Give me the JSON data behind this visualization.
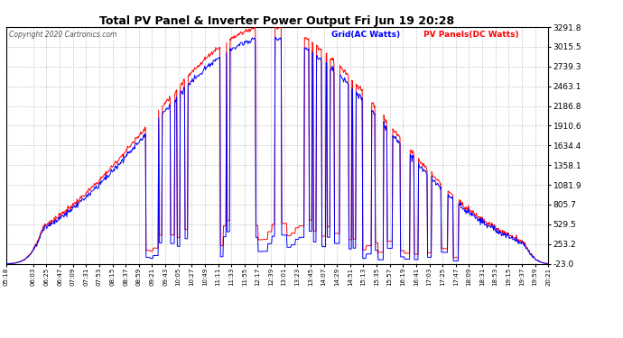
{
  "title": "Total PV Panel & Inverter Power Output Fri Jun 19 20:28",
  "copyright": "Copyright 2020 Cartronics.com",
  "legend_blue": "Grid(AC Watts)",
  "legend_red": "PV Panels(DC Watts)",
  "y_ticks": [
    3291.8,
    3015.5,
    2739.3,
    2463.1,
    2186.8,
    1910.6,
    1634.4,
    1358.1,
    1081.9,
    805.7,
    529.5,
    253.2,
    -23.0
  ],
  "ylim": [
    -23.0,
    3291.8
  ],
  "grid_color": "#bbbbbb",
  "bg_color": "#ffffff",
  "blue_color": "#0000ff",
  "red_color": "#ff0000",
  "title_color": "#000000",
  "copyright_color": "#555555"
}
